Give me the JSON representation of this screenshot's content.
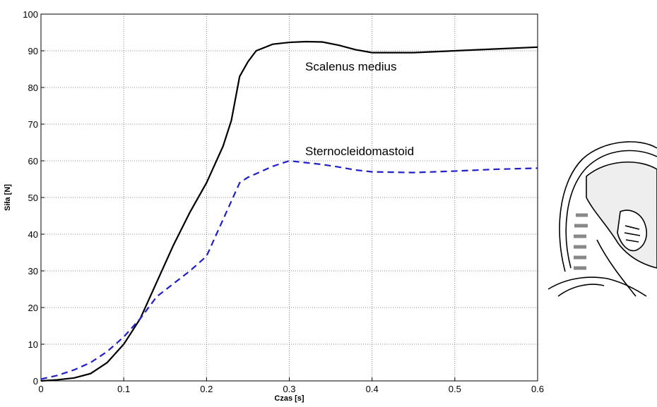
{
  "chart_data": {
    "type": "line",
    "x_label": "Czas [s]",
    "y_label": "Siła [N]",
    "x": [
      0,
      0.02,
      0.04,
      0.06,
      0.08,
      0.1,
      0.12,
      0.14,
      0.16,
      0.18,
      0.2,
      0.22,
      0.23,
      0.24,
      0.25,
      0.26,
      0.28,
      0.3,
      0.32,
      0.34,
      0.36,
      0.38,
      0.4,
      0.45,
      0.5,
      0.55,
      0.6
    ],
    "series": [
      {
        "name": "Scalenus medius",
        "color": "#000000",
        "dash": false,
        "values": [
          0,
          0.3,
          0.8,
          2,
          5,
          10,
          17,
          27,
          37,
          46,
          54,
          64,
          71,
          83,
          87,
          90,
          91.8,
          92.3,
          92.5,
          92.4,
          91.5,
          90.3,
          89.5,
          89.5,
          90,
          90.5,
          91
        ]
      },
      {
        "name": "Sternocleidomastoid",
        "color": "#1f1fc8",
        "dash": true,
        "values": [
          0.5,
          1.5,
          3,
          5,
          8,
          12,
          17,
          23,
          26.5,
          30,
          34,
          44,
          49,
          54,
          55.5,
          56.5,
          58.5,
          60,
          59.5,
          59,
          58.3,
          57.5,
          57,
          56.8,
          57.2,
          57.7,
          58
        ]
      }
    ],
    "xlim": [
      0,
      0.6
    ],
    "xticks": [
      0,
      0.1,
      0.2,
      0.3,
      0.4,
      0.5,
      0.6
    ],
    "ylim": [
      0,
      100
    ],
    "yticks": [
      0,
      10,
      20,
      30,
      40,
      50,
      60,
      70,
      80,
      90,
      100
    ],
    "grid": true
  }
}
